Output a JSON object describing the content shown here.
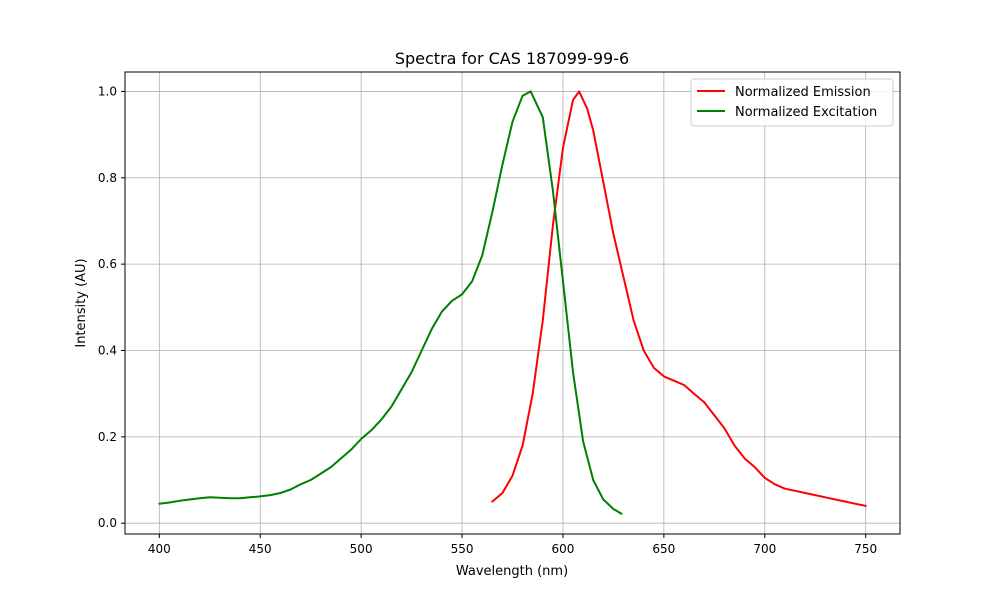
{
  "chart_data": {
    "type": "line",
    "title": "Spectra for CAS 187099-99-6",
    "xlabel": "Wavelength (nm)",
    "ylabel": "Intensity (AU)",
    "xlim": [
      383,
      767
    ],
    "ylim": [
      -0.025,
      1.045
    ],
    "xticks": [
      400,
      450,
      500,
      550,
      600,
      650,
      700,
      750
    ],
    "yticks": [
      0.0,
      0.2,
      0.4,
      0.6,
      0.8,
      1.0
    ],
    "xtick_labels": [
      "400",
      "450",
      "500",
      "550",
      "600",
      "650",
      "700",
      "750"
    ],
    "ytick_labels": [
      "0.0",
      "0.2",
      "0.4",
      "0.6",
      "0.8",
      "1.0"
    ],
    "grid": true,
    "legend_position": "top-right",
    "series": [
      {
        "name": "Normalized Emission",
        "color": "#ff0000",
        "points": [
          [
            565,
            0.05
          ],
          [
            570,
            0.07
          ],
          [
            575,
            0.11
          ],
          [
            580,
            0.18
          ],
          [
            585,
            0.3
          ],
          [
            590,
            0.47
          ],
          [
            595,
            0.69
          ],
          [
            600,
            0.87
          ],
          [
            605,
            0.98
          ],
          [
            608,
            1.0
          ],
          [
            612,
            0.96
          ],
          [
            615,
            0.91
          ],
          [
            620,
            0.79
          ],
          [
            625,
            0.67
          ],
          [
            630,
            0.57
          ],
          [
            635,
            0.47
          ],
          [
            640,
            0.4
          ],
          [
            645,
            0.36
          ],
          [
            650,
            0.34
          ],
          [
            655,
            0.33
          ],
          [
            660,
            0.32
          ],
          [
            665,
            0.3
          ],
          [
            670,
            0.28
          ],
          [
            675,
            0.25
          ],
          [
            680,
            0.22
          ],
          [
            685,
            0.18
          ],
          [
            690,
            0.15
          ],
          [
            695,
            0.13
          ],
          [
            700,
            0.105
          ],
          [
            705,
            0.09
          ],
          [
            710,
            0.08
          ],
          [
            715,
            0.075
          ],
          [
            720,
            0.07
          ],
          [
            725,
            0.065
          ],
          [
            730,
            0.06
          ],
          [
            735,
            0.055
          ],
          [
            740,
            0.05
          ],
          [
            745,
            0.045
          ],
          [
            750,
            0.04
          ]
        ]
      },
      {
        "name": "Normalized Excitation",
        "color": "#008000",
        "points": [
          [
            400,
            0.045
          ],
          [
            405,
            0.048
          ],
          [
            410,
            0.052
          ],
          [
            415,
            0.055
          ],
          [
            420,
            0.058
          ],
          [
            425,
            0.06
          ],
          [
            430,
            0.059
          ],
          [
            435,
            0.058
          ],
          [
            440,
            0.058
          ],
          [
            445,
            0.06
          ],
          [
            450,
            0.062
          ],
          [
            455,
            0.065
          ],
          [
            460,
            0.07
          ],
          [
            465,
            0.078
          ],
          [
            470,
            0.09
          ],
          [
            475,
            0.1
          ],
          [
            480,
            0.115
          ],
          [
            485,
            0.13
          ],
          [
            490,
            0.15
          ],
          [
            495,
            0.17
          ],
          [
            500,
            0.195
          ],
          [
            505,
            0.215
          ],
          [
            510,
            0.24
          ],
          [
            515,
            0.27
          ],
          [
            520,
            0.31
          ],
          [
            525,
            0.35
          ],
          [
            530,
            0.4
          ],
          [
            535,
            0.45
          ],
          [
            540,
            0.49
          ],
          [
            545,
            0.515
          ],
          [
            550,
            0.53
          ],
          [
            555,
            0.56
          ],
          [
            560,
            0.62
          ],
          [
            565,
            0.72
          ],
          [
            570,
            0.83
          ],
          [
            575,
            0.93
          ],
          [
            580,
            0.99
          ],
          [
            584,
            1.0
          ],
          [
            590,
            0.94
          ],
          [
            595,
            0.77
          ],
          [
            600,
            0.56
          ],
          [
            605,
            0.35
          ],
          [
            610,
            0.19
          ],
          [
            615,
            0.1
          ],
          [
            620,
            0.055
          ],
          [
            625,
            0.033
          ],
          [
            629,
            0.022
          ]
        ]
      }
    ]
  }
}
